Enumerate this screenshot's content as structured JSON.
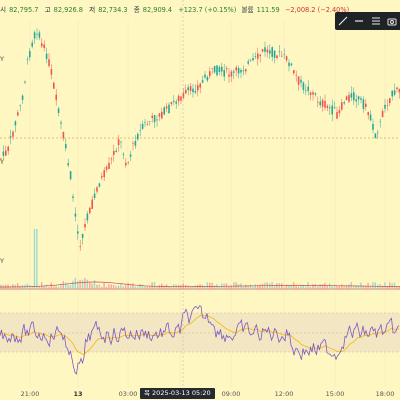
{
  "ohlc": {
    "open_label": "시",
    "open_value": "82,795.7",
    "high_label": "고",
    "high_value": "82,926.8",
    "low_label": "저",
    "low_value": "82,734.3",
    "close_label": "종",
    "close_value": "82,909.4",
    "change": "+123.7 (+0.15%)",
    "volume_label": "볼륨",
    "volume_value": "111.59",
    "volume_change": "−2,008.2 (−2.40%)"
  },
  "toolbar": {
    "icons": [
      "trend-line-icon",
      "horizontal-line-icon",
      "menu-icon",
      "camera-icon"
    ]
  },
  "xaxis": {
    "labels": [
      {
        "text": "21:00",
        "bold": false
      },
      {
        "text": "13",
        "bold": true
      },
      {
        "text": "03:00",
        "bold": false
      },
      {
        "text": "09:00",
        "bold": false
      },
      {
        "text": "12:00",
        "bold": false
      },
      {
        "text": "15:00",
        "bold": false
      },
      {
        "text": "18:00",
        "bold": false
      }
    ],
    "cursor_label": "목 2025-03-13  05:20"
  },
  "left_axis_fragment": "Y",
  "colors": {
    "background": "#fff7c2",
    "up": "#26a69a",
    "down": "#ef5350",
    "rsi_line": "#7e57c2",
    "rsi_ma": "#f5b700",
    "rsi_band": "#efe2c2",
    "dashed_level": "#e0a65a"
  }
}
